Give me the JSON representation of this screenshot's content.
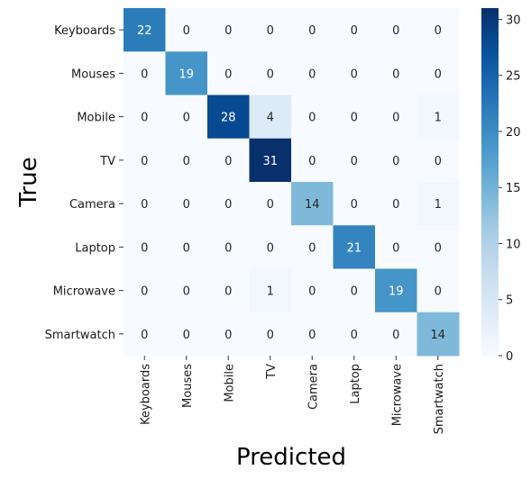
{
  "chart_data": {
    "type": "heatmap",
    "title": "",
    "xlabel": "Predicted",
    "ylabel": "True",
    "x_categories": [
      "Keyboards",
      "Mouses",
      "Mobile",
      "TV",
      "Camera",
      "Laptop",
      "Microwave",
      "Smartwatch"
    ],
    "y_categories": [
      "Keyboards",
      "Mouses",
      "Mobile",
      "TV",
      "Camera",
      "Laptop",
      "Microwave",
      "Smartwatch"
    ],
    "values": [
      [
        22,
        0,
        0,
        0,
        0,
        0,
        0,
        0
      ],
      [
        0,
        19,
        0,
        0,
        0,
        0,
        0,
        0
      ],
      [
        0,
        0,
        28,
        4,
        0,
        0,
        0,
        1
      ],
      [
        0,
        0,
        0,
        31,
        0,
        0,
        0,
        0
      ],
      [
        0,
        0,
        0,
        0,
        14,
        0,
        0,
        1
      ],
      [
        0,
        0,
        0,
        0,
        0,
        21,
        0,
        0
      ],
      [
        0,
        0,
        0,
        1,
        0,
        0,
        19,
        0
      ],
      [
        0,
        0,
        0,
        0,
        0,
        0,
        0,
        14
      ]
    ],
    "colorbar": {
      "min": 0,
      "max": 31,
      "ticks": [
        0,
        5,
        10,
        15,
        20,
        25,
        30
      ],
      "colormap": "Blues"
    }
  }
}
